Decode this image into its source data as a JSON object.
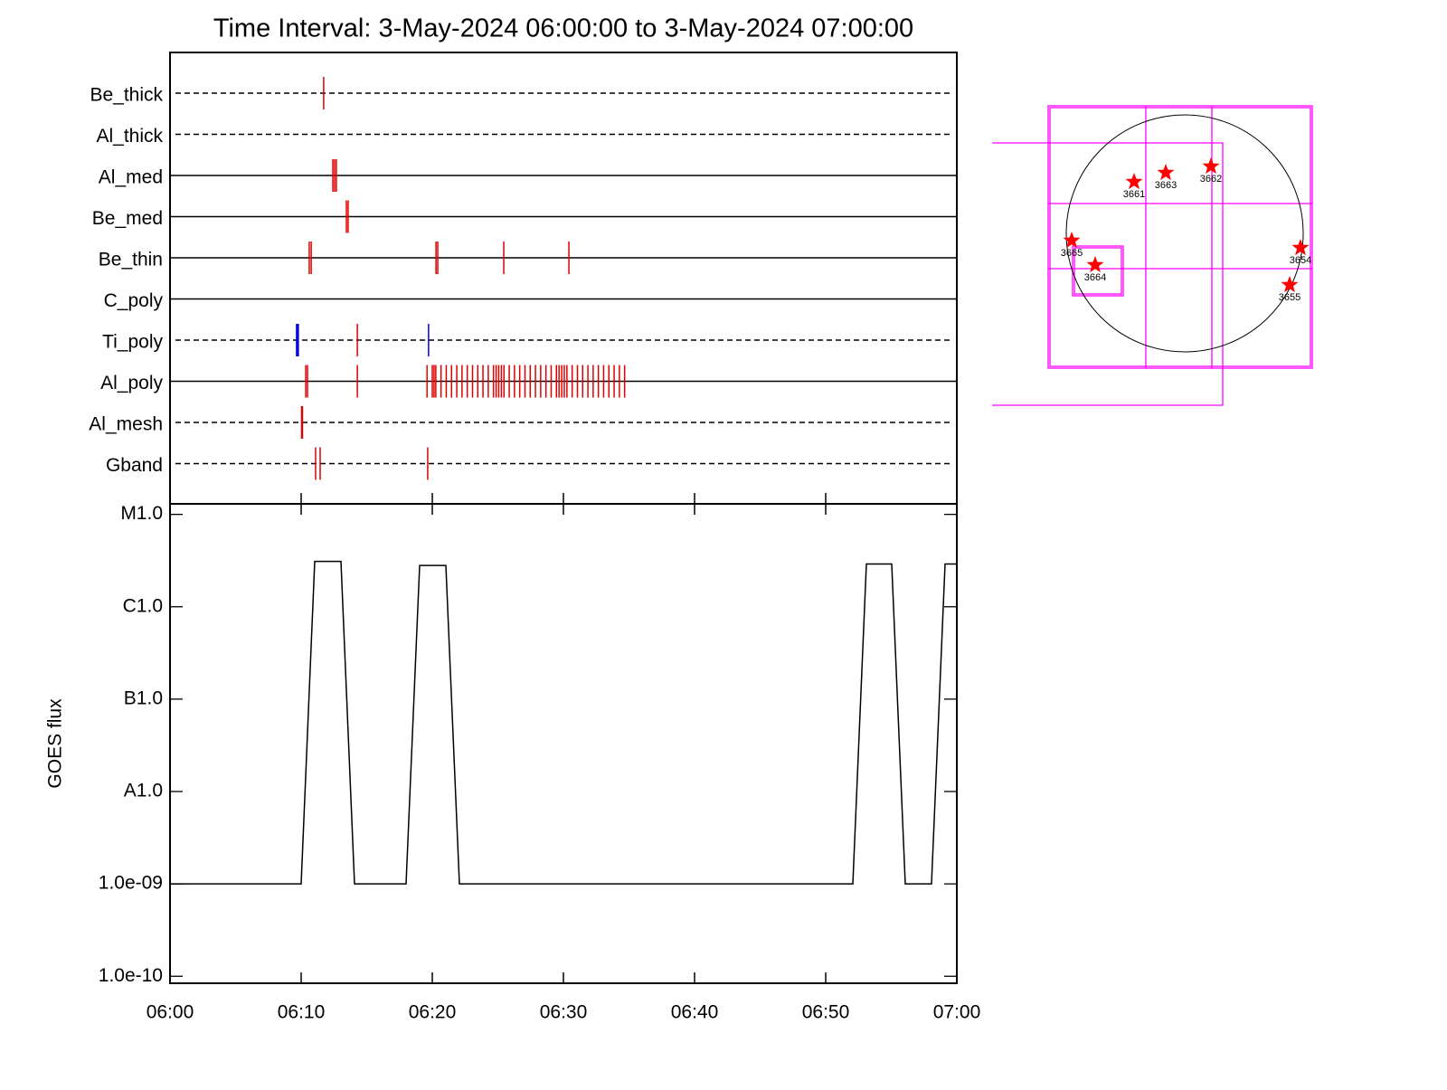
{
  "chart_data": [
    {
      "type": "events",
      "title": "Time Interval:  3-May-2024 06:00:00 to  3-May-2024 07:00:00",
      "xlim": [
        "06:00",
        "07:00"
      ],
      "rows": [
        {
          "name": "Be_thick",
          "style": "dashed",
          "series": [
            {
              "color": "#e00000",
              "times": [
                "06:11:43"
              ]
            }
          ]
        },
        {
          "name": "Al_thick",
          "style": "dashed",
          "series": []
        },
        {
          "name": "Al_med",
          "style": "solid",
          "series": [
            {
              "color": "#e00000",
              "times": [
                "06:12:25",
                "06:12:33",
                "06:12:41"
              ]
            }
          ]
        },
        {
          "name": "Be_med",
          "style": "solid",
          "series": [
            {
              "color": "#e00000",
              "times": [
                "06:13:27",
                "06:13:35"
              ]
            }
          ]
        },
        {
          "name": "Be_thin",
          "style": "solid",
          "series": [
            {
              "color": "#e00000",
              "times": [
                "06:10:37",
                "06:10:46",
                "06:20:17",
                "06:20:25",
                "06:25:27",
                "06:30:25"
              ]
            }
          ]
        },
        {
          "name": "C_poly",
          "style": "solid",
          "series": []
        },
        {
          "name": "Ti_poly",
          "style": "dashed",
          "series": [
            {
              "color": "#0000e0",
              "times": [
                "06:09:39",
                "06:09:44",
                "06:09:47",
                "06:19:43"
              ]
            },
            {
              "color": "#e00000",
              "times": [
                "06:14:17"
              ]
            }
          ]
        },
        {
          "name": "Al_poly",
          "style": "solid",
          "series": [
            {
              "color": "#e00000",
              "times": [
                "06:10:21",
                "06:10:29",
                "06:14:17",
                "06:19:36",
                "06:20:00",
                "06:20:08",
                "06:20:16",
                "06:20:40",
                "06:21:04",
                "06:21:28",
                "06:21:52",
                "06:22:16",
                "06:22:40",
                "06:23:04",
                "06:23:28",
                "06:23:52",
                "06:24:16",
                "06:24:40",
                "06:24:52",
                "06:25:04",
                "06:25:16",
                "06:25:28",
                "06:25:52",
                "06:26:16",
                "06:26:40",
                "06:27:04",
                "06:27:28",
                "06:27:52",
                "06:28:16",
                "06:28:40",
                "06:29:04",
                "06:29:28",
                "06:29:40",
                "06:29:52",
                "06:30:04",
                "06:30:16",
                "06:30:40",
                "06:31:04",
                "06:31:28",
                "06:31:52",
                "06:32:16",
                "06:32:40",
                "06:33:04",
                "06:33:28",
                "06:33:52",
                "06:34:16",
                "06:34:40"
              ]
            }
          ]
        },
        {
          "name": "Al_mesh",
          "style": "dashed",
          "series": [
            {
              "color": "#e00000",
              "times": [
                "06:10:02",
                "06:10:04",
                "06:10:06"
              ]
            }
          ]
        },
        {
          "name": "Gband",
          "style": "dashed",
          "series": [
            {
              "color": "#e00000",
              "times": [
                "06:11:06",
                "06:11:27",
                "06:19:39"
              ]
            }
          ]
        }
      ]
    },
    {
      "type": "line",
      "ylabel": "GOES flux",
      "log_scale": true,
      "color": "#000000",
      "xlim": [
        "06:00",
        "07:00"
      ],
      "xticks": [
        "06:00",
        "06:10",
        "06:20",
        "06:30",
        "06:40",
        "06:50",
        "07:00"
      ],
      "ylim": [
        8.4e-11,
        1.3e-05
      ],
      "yticks": [
        {
          "value": 1e-10,
          "label": "1.0e-10"
        },
        {
          "value": 1e-09,
          "label": "1.0e-09"
        },
        {
          "value": 1e-08,
          "label": "A1.0"
        },
        {
          "value": 1e-07,
          "label": "B1.0"
        },
        {
          "value": 1e-06,
          "label": "C1.0"
        },
        {
          "value": 1e-05,
          "label": "M1.0"
        }
      ],
      "x": [
        "06:00:00",
        "06:10:00",
        "06:11:02",
        "06:13:02",
        "06:14:04",
        "06:18:00",
        "06:19:02",
        "06:21:02",
        "06:22:04",
        "06:52:04",
        "06:53:06",
        "06:55:02",
        "06:56:04",
        "06:58:04",
        "06:59:06",
        "07:00:00"
      ],
      "values": [
        1e-09,
        1e-09,
        3.1e-06,
        3.1e-06,
        1e-09,
        1e-09,
        2.8e-06,
        2.8e-06,
        1e-09,
        1e-09,
        2.9e-06,
        2.9e-06,
        1e-09,
        1e-09,
        2.9e-06,
        2.9e-06
      ]
    },
    {
      "type": "map",
      "color": "#ff0000",
      "regions": [
        "3661",
        "3663",
        "3662",
        "3665",
        "3664",
        "3654",
        "3655"
      ]
    }
  ]
}
